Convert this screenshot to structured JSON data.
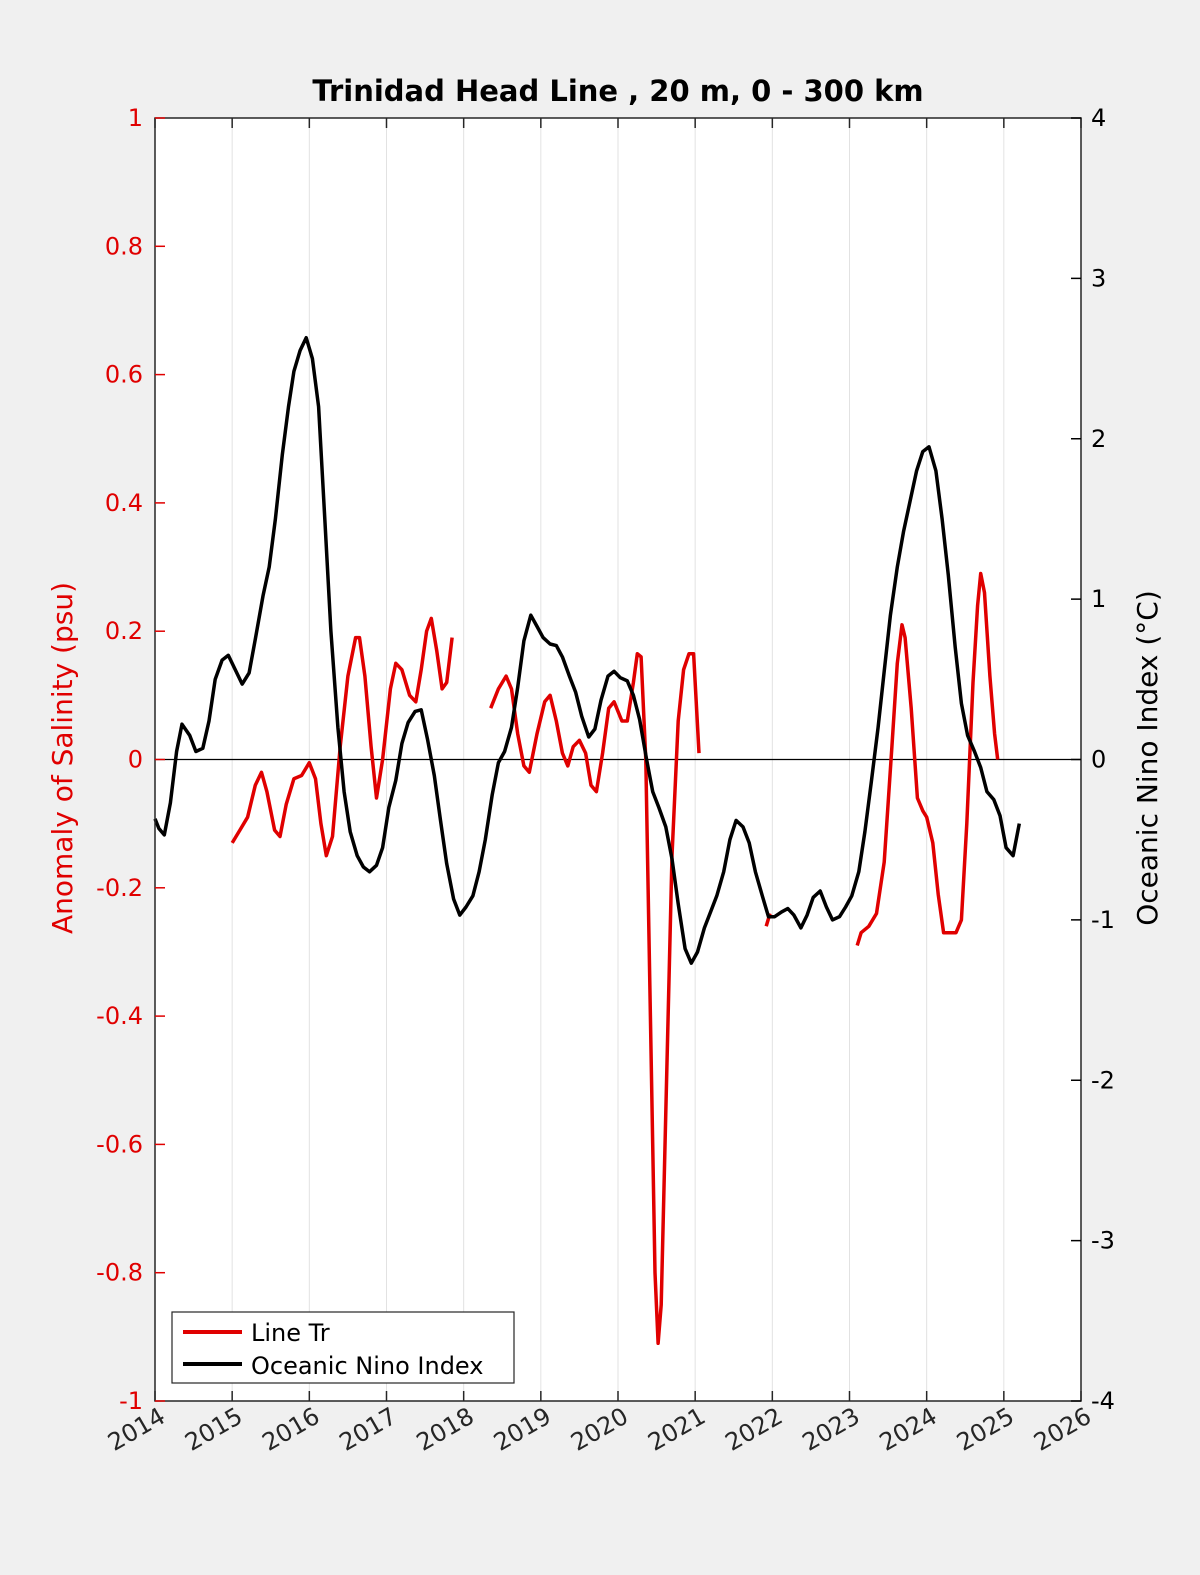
{
  "chart_data": {
    "type": "line",
    "title": "Trinidad Head Line , 20 m, 0 - 300 km",
    "ylabel_left": "Anomaly of Salinity (psu)",
    "ylabel_right": "Oceanic Nino Index (°C)",
    "xlim": [
      2014,
      2026
    ],
    "ylim_left": [
      -1,
      1
    ],
    "ylim_right": [
      -4,
      4
    ],
    "grid": "vertical",
    "legend_position": "bottom-left",
    "x_ticks": [
      "2014",
      "2015",
      "2016",
      "2017",
      "2018",
      "2019",
      "2020",
      "2021",
      "2022",
      "2023",
      "2024",
      "2025",
      "2026"
    ],
    "y_ticks_left": [
      "1",
      "0.8",
      "0.6",
      "0.4",
      "0.2",
      "0",
      "-0.2",
      "-0.4",
      "-0.6",
      "-0.8",
      "-1"
    ],
    "y_ticks_right": [
      "4",
      "3",
      "2",
      "1",
      "0",
      "-1",
      "-2",
      "-3",
      "-4"
    ],
    "colors": {
      "line_tr": "#e00000",
      "oni": "#000000",
      "left_axis": "#e00000",
      "right_axis": "#000000"
    },
    "series": [
      {
        "name": "Line Tr",
        "axis": "left",
        "segments": [
          [
            [
              2015.0,
              -0.13
            ],
            [
              2015.1,
              -0.11
            ],
            [
              2015.2,
              -0.09
            ],
            [
              2015.3,
              -0.04
            ],
            [
              2015.38,
              -0.02
            ],
            [
              2015.45,
              -0.05
            ],
            [
              2015.55,
              -0.11
            ],
            [
              2015.62,
              -0.12
            ],
            [
              2015.7,
              -0.07
            ],
            [
              2015.8,
              -0.03
            ],
            [
              2015.9,
              -0.025
            ],
            [
              2016.0,
              -0.005
            ],
            [
              2016.08,
              -0.03
            ],
            [
              2016.15,
              -0.1
            ],
            [
              2016.22,
              -0.15
            ],
            [
              2016.3,
              -0.12
            ],
            [
              2016.4,
              0.02
            ],
            [
              2016.5,
              0.13
            ],
            [
              2016.6,
              0.19
            ],
            [
              2016.65,
              0.19
            ],
            [
              2016.72,
              0.13
            ],
            [
              2016.8,
              0.02
            ],
            [
              2016.87,
              -0.06
            ],
            [
              2016.95,
              0.0
            ],
            [
              2017.05,
              0.11
            ],
            [
              2017.12,
              0.15
            ],
            [
              2017.2,
              0.14
            ],
            [
              2017.3,
              0.1
            ],
            [
              2017.38,
              0.09
            ],
            [
              2017.45,
              0.14
            ],
            [
              2017.52,
              0.2
            ],
            [
              2017.58,
              0.22
            ],
            [
              2017.65,
              0.17
            ],
            [
              2017.72,
              0.11
            ],
            [
              2017.78,
              0.12
            ],
            [
              2017.85,
              0.19
            ]
          ],
          [
            [
              2018.35,
              0.08
            ],
            [
              2018.45,
              0.11
            ],
            [
              2018.55,
              0.13
            ],
            [
              2018.62,
              0.11
            ],
            [
              2018.7,
              0.04
            ],
            [
              2018.78,
              -0.01
            ],
            [
              2018.85,
              -0.02
            ],
            [
              2018.95,
              0.04
            ],
            [
              2019.05,
              0.09
            ],
            [
              2019.12,
              0.1
            ],
            [
              2019.2,
              0.06
            ],
            [
              2019.28,
              0.01
            ],
            [
              2019.35,
              -0.01
            ],
            [
              2019.42,
              0.02
            ],
            [
              2019.5,
              0.03
            ],
            [
              2019.58,
              0.01
            ],
            [
              2019.65,
              -0.04
            ],
            [
              2019.72,
              -0.05
            ],
            [
              2019.8,
              0.01
            ],
            [
              2019.88,
              0.08
            ],
            [
              2019.95,
              0.09
            ],
            [
              2020.05,
              0.06
            ],
            [
              2020.12,
              0.06
            ],
            [
              2020.2,
              0.12
            ],
            [
              2020.25,
              0.165
            ],
            [
              2020.3,
              0.16
            ],
            [
              2020.36,
              0.0
            ],
            [
              2020.42,
              -0.4
            ],
            [
              2020.48,
              -0.8
            ],
            [
              2020.52,
              -0.91
            ],
            [
              2020.56,
              -0.85
            ],
            [
              2020.62,
              -0.55
            ],
            [
              2020.7,
              -0.15
            ],
            [
              2020.78,
              0.06
            ],
            [
              2020.85,
              0.14
            ],
            [
              2020.92,
              0.165
            ],
            [
              2020.98,
              0.165
            ],
            [
              2021.05,
              0.01
            ]
          ],
          [
            [
              2021.92,
              -0.26
            ],
            [
              2021.97,
              -0.24
            ]
          ],
          [
            [
              2023.1,
              -0.29
            ],
            [
              2023.15,
              -0.27
            ],
            [
              2023.25,
              -0.26
            ],
            [
              2023.35,
              -0.24
            ],
            [
              2023.45,
              -0.16
            ],
            [
              2023.55,
              0.02
            ],
            [
              2023.62,
              0.15
            ],
            [
              2023.68,
              0.21
            ],
            [
              2023.72,
              0.19
            ],
            [
              2023.8,
              0.08
            ],
            [
              2023.88,
              -0.06
            ],
            [
              2023.95,
              -0.08
            ],
            [
              2024.0,
              -0.09
            ],
            [
              2024.08,
              -0.13
            ],
            [
              2024.15,
              -0.21
            ],
            [
              2024.22,
              -0.27
            ],
            [
              2024.3,
              -0.27
            ],
            [
              2024.38,
              -0.27
            ],
            [
              2024.45,
              -0.25
            ],
            [
              2024.52,
              -0.1
            ],
            [
              2024.6,
              0.12
            ],
            [
              2024.66,
              0.24
            ],
            [
              2024.7,
              0.29
            ],
            [
              2024.75,
              0.26
            ],
            [
              2024.82,
              0.13
            ],
            [
              2024.88,
              0.04
            ],
            [
              2024.92,
              0.0
            ]
          ]
        ]
      },
      {
        "name": "Oceanic Nino Index",
        "axis": "right",
        "segments": [
          [
            [
              2014.0,
              -0.37
            ],
            [
              2014.05,
              -0.43
            ],
            [
              2014.12,
              -0.47
            ],
            [
              2014.2,
              -0.27
            ],
            [
              2014.28,
              0.05
            ],
            [
              2014.35,
              0.22
            ],
            [
              2014.45,
              0.15
            ],
            [
              2014.53,
              0.05
            ],
            [
              2014.62,
              0.07
            ],
            [
              2014.7,
              0.24
            ],
            [
              2014.78,
              0.5
            ],
            [
              2014.87,
              0.62
            ],
            [
              2014.95,
              0.65
            ],
            [
              2015.05,
              0.55
            ],
            [
              2015.13,
              0.47
            ],
            [
              2015.22,
              0.54
            ],
            [
              2015.3,
              0.75
            ],
            [
              2015.4,
              1.02
            ],
            [
              2015.48,
              1.2
            ],
            [
              2015.56,
              1.5
            ],
            [
              2015.65,
              1.9
            ],
            [
              2015.73,
              2.2
            ],
            [
              2015.8,
              2.42
            ],
            [
              2015.88,
              2.55
            ],
            [
              2015.96,
              2.63
            ],
            [
              2016.04,
              2.5
            ],
            [
              2016.12,
              2.2
            ],
            [
              2016.2,
              1.5
            ],
            [
              2016.28,
              0.8
            ],
            [
              2016.37,
              0.2
            ],
            [
              2016.45,
              -0.2
            ],
            [
              2016.53,
              -0.45
            ],
            [
              2016.62,
              -0.6
            ],
            [
              2016.7,
              -0.67
            ],
            [
              2016.78,
              -0.7
            ],
            [
              2016.87,
              -0.66
            ],
            [
              2016.95,
              -0.55
            ],
            [
              2017.03,
              -0.3
            ],
            [
              2017.12,
              -0.13
            ],
            [
              2017.2,
              0.1
            ],
            [
              2017.28,
              0.23
            ],
            [
              2017.37,
              0.3
            ],
            [
              2017.45,
              0.31
            ],
            [
              2017.53,
              0.13
            ],
            [
              2017.62,
              -0.1
            ],
            [
              2017.7,
              -0.38
            ],
            [
              2017.78,
              -0.65
            ],
            [
              2017.87,
              -0.87
            ],
            [
              2017.95,
              -0.97
            ],
            [
              2018.03,
              -0.92
            ],
            [
              2018.12,
              -0.85
            ],
            [
              2018.2,
              -0.7
            ],
            [
              2018.28,
              -0.5
            ],
            [
              2018.37,
              -0.22
            ],
            [
              2018.45,
              -0.02
            ],
            [
              2018.53,
              0.05
            ],
            [
              2018.62,
              0.2
            ],
            [
              2018.7,
              0.45
            ],
            [
              2018.78,
              0.74
            ],
            [
              2018.87,
              0.9
            ],
            [
              2018.95,
              0.83
            ],
            [
              2019.03,
              0.76
            ],
            [
              2019.12,
              0.72
            ],
            [
              2019.2,
              0.71
            ],
            [
              2019.28,
              0.64
            ],
            [
              2019.37,
              0.52
            ],
            [
              2019.45,
              0.42
            ],
            [
              2019.53,
              0.27
            ],
            [
              2019.62,
              0.14
            ],
            [
              2019.7,
              0.19
            ],
            [
              2019.78,
              0.37
            ],
            [
              2019.87,
              0.52
            ],
            [
              2019.95,
              0.55
            ],
            [
              2020.03,
              0.51
            ],
            [
              2020.12,
              0.49
            ],
            [
              2020.2,
              0.4
            ],
            [
              2020.28,
              0.25
            ],
            [
              2020.37,
              0.0
            ],
            [
              2020.45,
              -0.2
            ],
            [
              2020.53,
              -0.3
            ],
            [
              2020.62,
              -0.42
            ],
            [
              2020.7,
              -0.62
            ],
            [
              2020.78,
              -0.9
            ],
            [
              2020.87,
              -1.18
            ],
            [
              2020.95,
              -1.27
            ],
            [
              2021.03,
              -1.2
            ],
            [
              2021.12,
              -1.05
            ],
            [
              2021.2,
              -0.95
            ],
            [
              2021.28,
              -0.85
            ],
            [
              2021.37,
              -0.7
            ],
            [
              2021.45,
              -0.5
            ],
            [
              2021.53,
              -0.38
            ],
            [
              2021.62,
              -0.42
            ],
            [
              2021.7,
              -0.52
            ],
            [
              2021.78,
              -0.7
            ],
            [
              2021.87,
              -0.85
            ],
            [
              2021.95,
              -0.98
            ],
            [
              2022.03,
              -0.98
            ],
            [
              2022.12,
              -0.95
            ],
            [
              2022.2,
              -0.93
            ],
            [
              2022.28,
              -0.97
            ],
            [
              2022.37,
              -1.05
            ],
            [
              2022.45,
              -0.97
            ],
            [
              2022.53,
              -0.86
            ],
            [
              2022.62,
              -0.82
            ],
            [
              2022.7,
              -0.92
            ],
            [
              2022.78,
              -1.0
            ],
            [
              2022.87,
              -0.98
            ],
            [
              2022.95,
              -0.92
            ],
            [
              2023.03,
              -0.85
            ],
            [
              2023.12,
              -0.7
            ],
            [
              2023.2,
              -0.45
            ],
            [
              2023.28,
              -0.15
            ],
            [
              2023.37,
              0.2
            ],
            [
              2023.45,
              0.55
            ],
            [
              2023.53,
              0.9
            ],
            [
              2023.62,
              1.2
            ],
            [
              2023.7,
              1.42
            ],
            [
              2023.78,
              1.6
            ],
            [
              2023.87,
              1.8
            ],
            [
              2023.95,
              1.92
            ],
            [
              2024.03,
              1.95
            ],
            [
              2024.12,
              1.8
            ],
            [
              2024.2,
              1.5
            ],
            [
              2024.28,
              1.15
            ],
            [
              2024.37,
              0.7
            ],
            [
              2024.45,
              0.35
            ],
            [
              2024.53,
              0.15
            ],
            [
              2024.62,
              0.05
            ],
            [
              2024.7,
              -0.05
            ],
            [
              2024.78,
              -0.2
            ],
            [
              2024.87,
              -0.25
            ],
            [
              2024.95,
              -0.35
            ],
            [
              2025.03,
              -0.55
            ],
            [
              2025.12,
              -0.6
            ],
            [
              2025.2,
              -0.4
            ]
          ]
        ]
      }
    ],
    "zero_line": 0
  }
}
